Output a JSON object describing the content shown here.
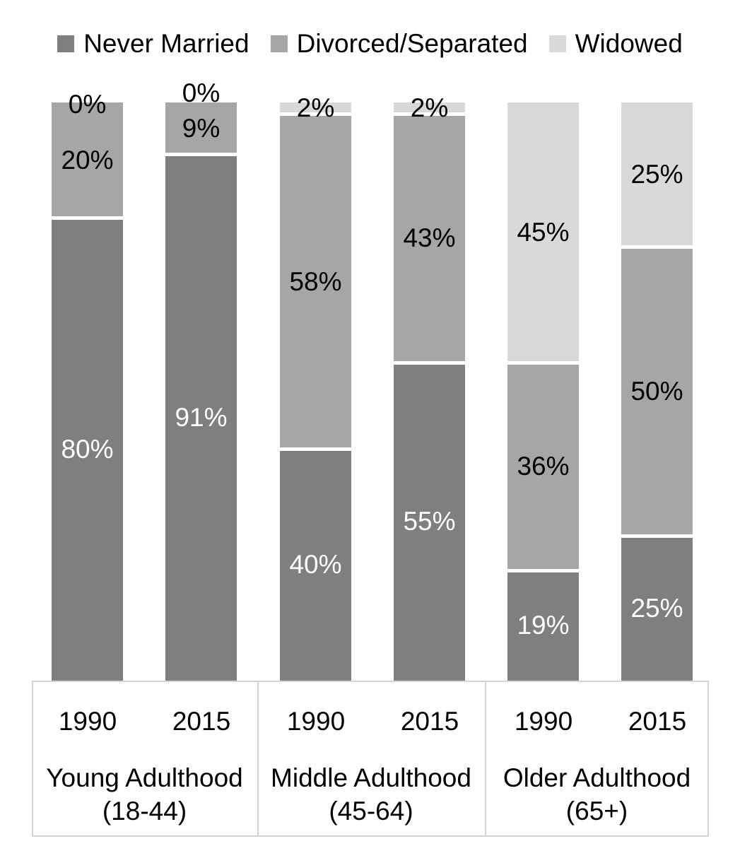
{
  "legend": {
    "items": [
      {
        "label": "Never Married",
        "swatch": "#7f7f7f"
      },
      {
        "label": "Divorced/Separated",
        "swatch": "#a6a6a6"
      },
      {
        "label": "Widowed",
        "swatch": "#d9d9d9"
      }
    ]
  },
  "axis": {
    "groups": [
      {
        "label": "Young Adulthood",
        "sublabel": "(18-44)",
        "years": [
          "1990",
          "2015"
        ]
      },
      {
        "label": "Middle Adulthood",
        "sublabel": "(45-64)",
        "years": [
          "1990",
          "2015"
        ]
      },
      {
        "label": "Older Adulthood",
        "sublabel": "(65+)",
        "years": [
          "1990",
          "2015"
        ]
      }
    ]
  },
  "chart_data": {
    "type": "bar",
    "stacked": true,
    "title": "",
    "xlabel": "",
    "ylabel": "",
    "value_suffix": "%",
    "legend_position": "top",
    "grid": false,
    "axis": {
      "ylim": [
        0,
        100
      ]
    },
    "categories": [
      "Young Adulthood (18-44) 1990",
      "Young Adulthood (18-44) 2015",
      "Middle Adulthood (45-64) 1990",
      "Middle Adulthood (45-64) 2015",
      "Older Adulthood (65+) 1990",
      "Older Adulthood (65+) 2015"
    ],
    "series": [
      {
        "name": "Never Married",
        "key": "never-married",
        "color": "#7f7f7f",
        "label_color": "#ffffff",
        "values": [
          80,
          91,
          40,
          55,
          19,
          25
        ]
      },
      {
        "name": "Divorced/Separated",
        "key": "divorced-separated",
        "color": "#a6a6a6",
        "label_color": "#000000",
        "values": [
          20,
          9,
          58,
          43,
          36,
          50
        ]
      },
      {
        "name": "Widowed",
        "key": "widowed",
        "color": "#d9d9d9",
        "label_color": "#000000",
        "values": [
          0,
          0,
          2,
          2,
          45,
          25
        ]
      }
    ],
    "layout_hints": {
      "stack_order_top_down": [
        "Widowed",
        "Divorced/Separated",
        "Never Married"
      ],
      "zero_label_dy": {
        "0": 3,
        "1": -13
      }
    }
  }
}
